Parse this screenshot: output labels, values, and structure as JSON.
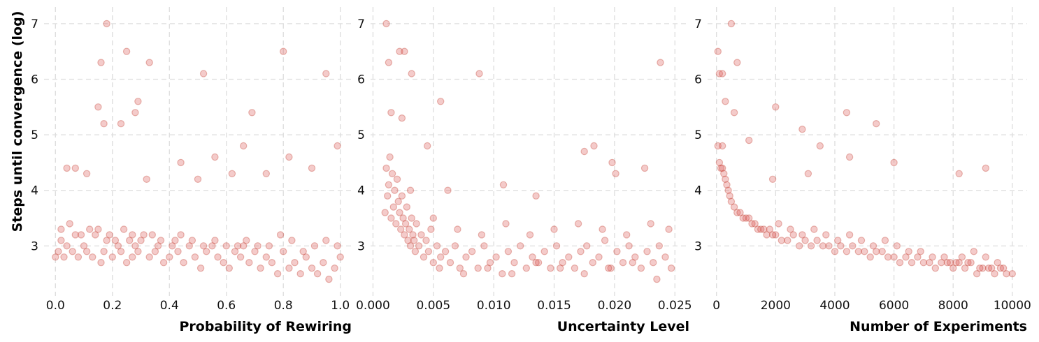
{
  "figure": {
    "ylabel": "Steps until convergence (log)",
    "point_color": "#d9534f",
    "point_edge_color": "#c0392b",
    "point_alpha": 0.3,
    "grid": true
  },
  "chart_data": [
    {
      "type": "scatter",
      "xlabel": "Probability of Rewiring",
      "ylabel": "Steps until convergence (log)",
      "xlim": [
        -0.04,
        1.04
      ],
      "ylim": [
        2.1,
        7.3
      ],
      "xticks": [
        0.0,
        0.2,
        0.4,
        0.6,
        0.8,
        1.0
      ],
      "xtick_labels": [
        "0.0",
        "0.2",
        "0.4",
        "0.6",
        "0.8",
        "1.0"
      ],
      "yticks": [
        3,
        4,
        5,
        6,
        7
      ],
      "ytick_labels": [
        "3",
        "4",
        "5",
        "6",
        "7"
      ],
      "x": [
        0.0,
        0.01,
        0.02,
        0.03,
        0.04,
        0.06,
        0.07,
        0.08,
        0.1,
        0.11,
        0.13,
        0.15,
        0.16,
        0.17,
        0.18,
        0.2,
        0.22,
        0.23,
        0.25,
        0.26,
        0.27,
        0.28,
        0.29,
        0.31,
        0.33,
        0.35,
        0.36,
        0.38,
        0.4,
        0.42,
        0.43,
        0.45,
        0.47,
        0.49,
        0.51,
        0.53,
        0.55,
        0.57,
        0.59,
        0.61,
        0.63,
        0.65,
        0.66,
        0.68,
        0.7,
        0.72,
        0.74,
        0.76,
        0.78,
        0.8,
        0.82,
        0.84,
        0.86,
        0.88,
        0.9,
        0.92,
        0.94,
        0.96,
        0.98,
        1.0,
        0.02,
        0.05,
        0.09,
        0.12,
        0.14,
        0.19,
        0.21,
        0.24,
        0.27,
        0.3,
        0.34,
        0.37,
        0.41,
        0.44,
        0.48,
        0.52,
        0.56,
        0.6,
        0.64,
        0.67,
        0.71,
        0.75,
        0.79,
        0.83,
        0.87,
        0.91,
        0.95,
        0.99,
        0.15,
        0.17,
        0.23,
        0.28,
        0.32,
        0.18,
        0.52,
        0.69,
        0.95,
        0.8,
        0.29,
        0.25,
        0.16,
        0.56,
        0.66,
        0.82,
        0.99,
        0.04,
        0.11,
        0.62,
        0.74,
        0.44,
        0.9,
        0.07,
        0.33,
        0.5
      ],
      "y": [
        2.8,
        2.9,
        3.1,
        2.8,
        3.0,
        2.9,
        3.2,
        2.8,
        3.0,
        2.9,
        2.8,
        3.3,
        2.7,
        2.9,
        3.1,
        2.8,
        3.0,
        2.9,
        2.7,
        3.1,
        2.8,
        3.0,
        2.9,
        3.2,
        2.8,
        2.9,
        3.0,
        2.7,
        2.8,
        3.1,
        2.9,
        2.7,
        3.0,
        2.8,
        2.6,
        2.9,
        3.0,
        2.8,
        2.7,
        2.6,
        2.9,
        2.8,
        3.0,
        2.7,
        2.9,
        2.6,
        2.8,
        2.7,
        2.5,
        2.9,
        2.6,
        2.7,
        2.5,
        2.8,
        2.6,
        2.5,
        2.7,
        2.4,
        2.6,
        2.8,
        3.3,
        3.4,
        3.2,
        3.3,
        3.2,
        3.2,
        3.1,
        3.3,
        3.2,
        3.1,
        3.2,
        3.1,
        3.0,
        3.2,
        3.1,
        3.0,
        3.1,
        3.0,
        3.0,
        3.1,
        3.0,
        3.0,
        3.2,
        3.1,
        2.9,
        3.0,
        3.1,
        3.0,
        5.5,
        5.2,
        5.2,
        5.4,
        4.2,
        7.0,
        6.1,
        5.4,
        6.1,
        6.5,
        5.6,
        6.5,
        6.3,
        4.6,
        4.8,
        4.6,
        4.8,
        4.4,
        4.3,
        4.3,
        4.3,
        4.5,
        4.4,
        4.4,
        6.3,
        4.2
      ]
    },
    {
      "type": "scatter",
      "xlabel": "Uncertainty Level",
      "ylabel": "",
      "xlim": [
        -0.0002,
        0.0262
      ],
      "ylim": [
        2.1,
        7.3
      ],
      "xticks": [
        0.0,
        0.005,
        0.01,
        0.015,
        0.02,
        0.025
      ],
      "xtick_labels": [
        "0.000",
        "0.005",
        "0.010",
        "0.015",
        "0.020",
        "0.025"
      ],
      "yticks": [
        3,
        4,
        5,
        6,
        7
      ],
      "ytick_labels": [
        "3",
        "4",
        "5",
        "6",
        "7"
      ],
      "x": [
        0.001,
        0.0011,
        0.0012,
        0.0013,
        0.0014,
        0.0015,
        0.0016,
        0.0017,
        0.0018,
        0.0019,
        0.002,
        0.0021,
        0.0022,
        0.0023,
        0.0024,
        0.0025,
        0.0026,
        0.0027,
        0.0028,
        0.0029,
        0.003,
        0.0031,
        0.0032,
        0.0033,
        0.0034,
        0.0035,
        0.0036,
        0.0038,
        0.004,
        0.0042,
        0.0044,
        0.0046,
        0.0048,
        0.005,
        0.0053,
        0.0056,
        0.006,
        0.0064,
        0.0068,
        0.0072,
        0.0077,
        0.0082,
        0.0087,
        0.0092,
        0.0097,
        0.0102,
        0.0107,
        0.0112,
        0.0117,
        0.0122,
        0.0127,
        0.0132,
        0.0137,
        0.0142,
        0.0147,
        0.0152,
        0.0157,
        0.0162,
        0.0167,
        0.0172,
        0.0177,
        0.0182,
        0.0187,
        0.0192,
        0.0197,
        0.0202,
        0.0207,
        0.0212,
        0.0217,
        0.0222,
        0.0227,
        0.0232,
        0.0237,
        0.0242,
        0.0247,
        0.005,
        0.007,
        0.009,
        0.011,
        0.013,
        0.015,
        0.017,
        0.019,
        0.021,
        0.023,
        0.0245,
        0.0055,
        0.0075,
        0.0095,
        0.0115,
        0.0135,
        0.0155,
        0.0175,
        0.0195,
        0.0215,
        0.0235,
        0.0011,
        0.0022,
        0.0026,
        0.0013,
        0.0032,
        0.0056,
        0.0088,
        0.0024,
        0.0175,
        0.0183,
        0.0198,
        0.0238,
        0.0201,
        0.0045,
        0.0015,
        0.0031,
        0.0062,
        0.0108,
        0.0135,
        0.0225
      ],
      "y": [
        3.6,
        4.4,
        3.9,
        4.1,
        4.6,
        3.5,
        4.3,
        3.7,
        4.0,
        3.4,
        4.2,
        3.8,
        3.6,
        3.3,
        3.9,
        3.5,
        3.2,
        3.4,
        3.7,
        3.1,
        3.3,
        3.0,
        3.5,
        3.2,
        3.1,
        2.9,
        3.4,
        3.0,
        3.2,
        2.8,
        3.1,
        2.9,
        3.3,
        2.7,
        3.0,
        2.8,
        2.9,
        2.7,
        3.0,
        2.6,
        2.8,
        2.9,
        2.6,
        3.0,
        2.7,
        2.8,
        2.5,
        2.9,
        2.7,
        3.0,
        2.6,
        2.8,
        2.7,
        2.9,
        2.6,
        3.0,
        2.7,
        2.8,
        2.6,
        2.9,
        3.0,
        2.7,
        2.8,
        3.1,
        2.6,
        2.9,
        2.7,
        3.0,
        2.8,
        2.6,
        2.9,
        2.7,
        3.0,
        2.8,
        2.6,
        3.5,
        3.3,
        3.2,
        3.4,
        3.2,
        3.3,
        3.4,
        3.3,
        3.2,
        3.4,
        3.3,
        2.6,
        2.5,
        2.6,
        2.5,
        2.7,
        2.6,
        2.5,
        2.6,
        2.7,
        2.4,
        7.0,
        6.5,
        6.5,
        6.3,
        6.1,
        5.6,
        6.1,
        5.3,
        4.7,
        4.8,
        4.5,
        6.3,
        4.3,
        4.8,
        5.4,
        4.0,
        4.0,
        4.1,
        3.9,
        4.4
      ]
    },
    {
      "type": "scatter",
      "xlabel": "Number of Experiments",
      "ylabel": "",
      "xlim": [
        -300,
        10500
      ],
      "ylim": [
        2.1,
        7.3
      ],
      "xticks": [
        0,
        2000,
        4000,
        6000,
        8000,
        10000
      ],
      "xtick_labels": [
        "0",
        "2000",
        "4000",
        "6000",
        "8000",
        "10000"
      ],
      "yticks": [
        3,
        4,
        5,
        6,
        7
      ],
      "ytick_labels": [
        "3",
        "4",
        "5",
        "6",
        "7"
      ],
      "x": [
        50,
        100,
        150,
        200,
        250,
        300,
        350,
        400,
        450,
        500,
        600,
        700,
        800,
        900,
        1000,
        1100,
        1200,
        1300,
        1400,
        1500,
        1600,
        1700,
        1800,
        1900,
        2000,
        2200,
        2400,
        2600,
        2800,
        3000,
        3200,
        3400,
        3600,
        3800,
        4000,
        4200,
        4400,
        4600,
        4800,
        5000,
        5200,
        5400,
        5600,
        5800,
        6000,
        6200,
        6400,
        6600,
        6800,
        7000,
        7200,
        7400,
        7600,
        7800,
        8000,
        8200,
        8400,
        8600,
        8800,
        9000,
        9200,
        9400,
        9600,
        9800,
        10000,
        2100,
        2500,
        2900,
        3300,
        3700,
        4100,
        4500,
        4900,
        5300,
        5700,
        6100,
        6500,
        6900,
        7300,
        7700,
        8100,
        8500,
        8900,
        9300,
        9700,
        8700,
        8300,
        7900,
        9100,
        9500,
        50,
        100,
        200,
        300,
        500,
        700,
        2000,
        2900,
        4400,
        5400,
        600,
        1100,
        3500,
        4500,
        8200,
        9100,
        6000,
        3100,
        1900,
        200
      ],
      "y": [
        4.8,
        4.5,
        4.4,
        4.4,
        4.3,
        4.2,
        4.1,
        4.0,
        3.9,
        3.8,
        3.7,
        3.6,
        3.6,
        3.5,
        3.5,
        3.5,
        3.4,
        3.4,
        3.3,
        3.3,
        3.3,
        3.2,
        3.3,
        3.2,
        3.2,
        3.1,
        3.1,
        3.2,
        3.0,
        3.1,
        3.0,
        3.1,
        3.0,
        3.0,
        2.9,
        3.0,
        2.9,
        3.0,
        2.9,
        2.9,
        2.8,
        2.9,
        2.9,
        2.8,
        2.8,
        2.7,
        2.8,
        2.7,
        2.8,
        2.7,
        2.7,
        2.6,
        2.7,
        2.7,
        2.6,
        2.7,
        2.6,
        2.7,
        2.5,
        2.6,
        2.6,
        2.5,
        2.6,
        2.5,
        2.5,
        3.4,
        3.3,
        3.2,
        3.3,
        3.2,
        3.1,
        3.2,
        3.1,
        3.0,
        3.1,
        3.0,
        2.9,
        2.9,
        2.8,
        2.8,
        2.7,
        2.7,
        2.6,
        2.6,
        2.6,
        2.9,
        2.8,
        2.7,
        2.8,
        2.7,
        6.5,
        6.1,
        6.1,
        5.6,
        7.0,
        6.3,
        5.5,
        5.1,
        5.4,
        5.2,
        5.4,
        4.9,
        4.8,
        4.6,
        4.3,
        4.4,
        4.5,
        4.3,
        4.2,
        4.8
      ]
    }
  ]
}
